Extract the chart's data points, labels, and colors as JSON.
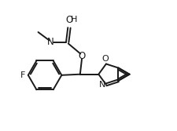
{
  "bg_color": "#ffffff",
  "line_color": "#1a1a1a",
  "line_width": 1.4,
  "font_size": 8.0,
  "figsize": [
    2.26,
    1.67
  ],
  "dpi": 100,
  "xlim": [
    0,
    10
  ],
  "ylim": [
    0,
    7.4
  ]
}
